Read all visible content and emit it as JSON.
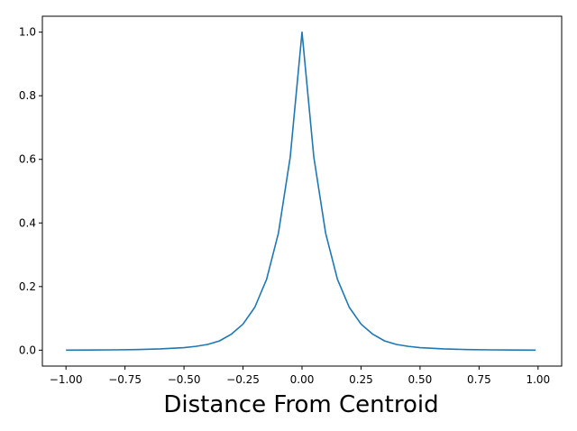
{
  "chart_data": {
    "type": "line",
    "title": "",
    "xlabel": "Distance From Centroid",
    "ylabel": "",
    "xlim": [
      -1.1,
      1.1
    ],
    "ylim": [
      -0.05,
      1.05
    ],
    "grid": false,
    "x_ticks": [
      -1.0,
      -0.75,
      -0.5,
      -0.25,
      0.0,
      0.25,
      0.5,
      0.75,
      1.0
    ],
    "x_tick_labels": [
      "−1.00",
      "−0.75",
      "−0.50",
      "−0.25",
      "0.00",
      "0.25",
      "0.50",
      "0.75",
      "1.00"
    ],
    "y_ticks": [
      0.0,
      0.2,
      0.4,
      0.6,
      0.8,
      1.0
    ],
    "y_tick_labels": [
      "0.0",
      "0.2",
      "0.4",
      "0.6",
      "0.8",
      "1.0"
    ],
    "series": [
      {
        "color": "#1f77b4",
        "x": [
          -1.0,
          -0.9,
          -0.8,
          -0.7,
          -0.6,
          -0.5,
          -0.45,
          -0.4,
          -0.35,
          -0.3,
          -0.25,
          -0.2,
          -0.15,
          -0.1,
          -0.05,
          0.0,
          0.05,
          0.1,
          0.15,
          0.2,
          0.25,
          0.3,
          0.35,
          0.4,
          0.45,
          0.5,
          0.6,
          0.7,
          0.8,
          0.9,
          0.99
        ],
        "y": [
          0.0,
          0.0005,
          0.001,
          0.002,
          0.004,
          0.008,
          0.012,
          0.018,
          0.029,
          0.05,
          0.082,
          0.135,
          0.223,
          0.368,
          0.607,
          1.0,
          0.607,
          0.368,
          0.223,
          0.135,
          0.082,
          0.05,
          0.029,
          0.018,
          0.012,
          0.008,
          0.004,
          0.002,
          0.001,
          0.0005,
          0.0
        ]
      }
    ]
  }
}
